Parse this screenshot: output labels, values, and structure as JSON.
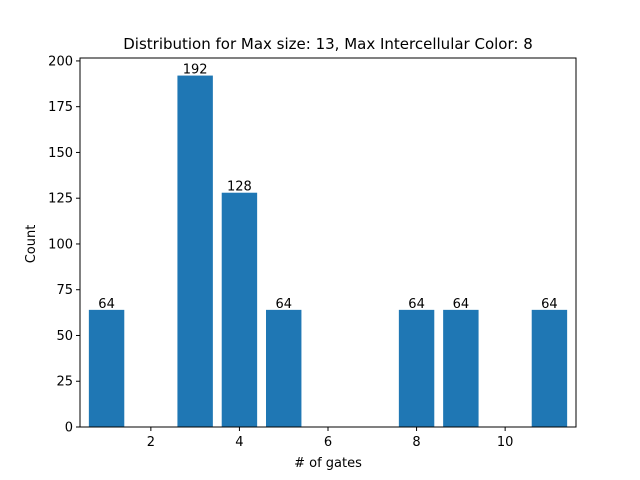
{
  "chart_data": {
    "type": "bar",
    "title": "Distribution for Max size: 13, Max Intercellular Color: 8",
    "xlabel": "# of gates",
    "ylabel": "Count",
    "x": [
      1,
      3,
      4,
      5,
      8,
      9,
      11
    ],
    "values": [
      64,
      192,
      128,
      64,
      64,
      64,
      64
    ],
    "data_labels": [
      "64",
      "192",
      "128",
      "64",
      "64",
      "64",
      "64"
    ],
    "xlim": [
      0.4,
      11.6
    ],
    "ylim": [
      0,
      201.6
    ],
    "xticks": [
      2,
      4,
      6,
      8,
      10
    ],
    "yticks": [
      0,
      25,
      50,
      75,
      100,
      125,
      150,
      175,
      200
    ],
    "bar_color": "#1f77b4",
    "grid": false,
    "legend": "none"
  }
}
